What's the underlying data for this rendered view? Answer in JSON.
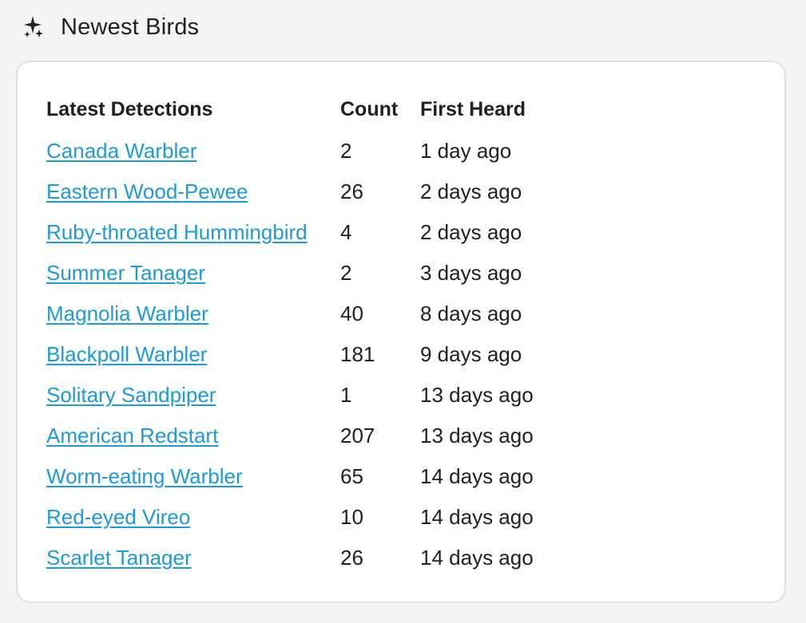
{
  "header": {
    "icon": "sparkles-icon",
    "title": "Newest Birds"
  },
  "colors": {
    "link": "#1d9bd7",
    "text": "#212121",
    "card_border": "#e0e0e0",
    "background": "#f4f4f4"
  },
  "table": {
    "columns": [
      "Latest Detections",
      "Count",
      "First Heard"
    ],
    "rows": [
      {
        "name": "Canada Warbler",
        "count": "2",
        "first_heard": "1 day ago"
      },
      {
        "name": "Eastern Wood-Pewee",
        "count": "26",
        "first_heard": "2 days ago"
      },
      {
        "name": "Ruby-throated Hummingbird",
        "count": "4",
        "first_heard": "2 days ago"
      },
      {
        "name": "Summer Tanager",
        "count": "2",
        "first_heard": "3 days ago"
      },
      {
        "name": "Magnolia Warbler",
        "count": "40",
        "first_heard": "8 days ago"
      },
      {
        "name": "Blackpoll Warbler",
        "count": "181",
        "first_heard": "9 days ago"
      },
      {
        "name": "Solitary Sandpiper",
        "count": "1",
        "first_heard": "13 days ago"
      },
      {
        "name": "American Redstart",
        "count": "207",
        "first_heard": "13 days ago"
      },
      {
        "name": "Worm-eating Warbler",
        "count": "65",
        "first_heard": "14 days ago"
      },
      {
        "name": "Red-eyed Vireo",
        "count": "10",
        "first_heard": "14 days ago"
      },
      {
        "name": "Scarlet Tanager",
        "count": "26",
        "first_heard": "14 days ago"
      }
    ]
  }
}
